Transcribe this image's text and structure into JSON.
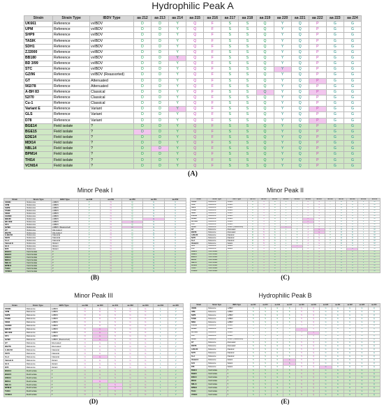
{
  "colors": {
    "field_row": "#cfe8c4",
    "highlight": "#f2c6ee",
    "header": "#d8d8d8"
  },
  "panels": [
    {
      "id": "A",
      "title": "Hydrophilic Peak A",
      "label": "(A)",
      "box": [
        34,
        0,
        484,
        258
      ],
      "title_h": 20,
      "title_fs": 14,
      "label_fs": 10,
      "fs": 5.1,
      "first_w": 0.085,
      "type_w": 0.11,
      "ibdv_w": 0.13,
      "columns": [
        "Strain",
        "Strain Type",
        "IBDV Type",
        "aa 212",
        "aa 213",
        "aa 214",
        "aa 215",
        "aa 216",
        "aa 217",
        "aa 218",
        "aa 219",
        "aa 220",
        "aa 221",
        "aa 222",
        "aa 223",
        "aa 224"
      ],
      "residues": [
        "D",
        "D",
        "Y",
        "Q",
        "F",
        "S",
        "S",
        "Q",
        "Y",
        "Q",
        "P",
        "G",
        "G"
      ],
      "colorkeys": [
        "g",
        "g",
        "g",
        "p",
        "p",
        "g",
        "g",
        "g",
        "t",
        "t",
        "p",
        "t",
        "t"
      ]
    },
    {
      "id": "B",
      "title": "Minor Peak I",
      "label": "(B)",
      "box": [
        5,
        268,
        262,
        138
      ],
      "title_h": 14,
      "title_fs": 9,
      "label_fs": 9,
      "fs": 2.8,
      "first_w": 0.12,
      "type_w": 0.14,
      "ibdv_w": 0.15,
      "columns": [
        "Strain",
        "Strain Type",
        "IBDV Type",
        "aa 248",
        "aa 249",
        "aa 250",
        "aa 251",
        "aa 252"
      ],
      "residues": [
        "T",
        "N",
        "Q",
        "G",
        "V"
      ],
      "colorkeys": [
        "g",
        "p",
        "g",
        "t",
        "t"
      ]
    },
    {
      "id": "C",
      "title": "Minor Peak II",
      "label": "(C)",
      "box": [
        272,
        268,
        273,
        138
      ],
      "title_h": 14,
      "title_fs": 9,
      "label_fs": 9,
      "fs": 2.4,
      "first_w": 0.09,
      "type_w": 0.1,
      "ibdv_w": 0.11,
      "columns": [
        "Strain",
        "Strain Type",
        "IBDV Type",
        "aa 279",
        "aa 280",
        "aa 281",
        "aa 282",
        "aa 283",
        "aa 284",
        "aa 285",
        "aa 286",
        "aa 287",
        "aa 288",
        "aa 289",
        "aa 290"
      ],
      "residues": [
        "D",
        "N",
        "G",
        "L",
        "T",
        "A",
        "G",
        "T",
        "D",
        "N",
        "L",
        "M"
      ],
      "colorkeys": [
        "g",
        "p",
        "g",
        "g",
        "g",
        "p",
        "p",
        "g",
        "t",
        "t",
        "t",
        "t"
      ]
    },
    {
      "id": "D",
      "title": "Minor Peak III",
      "label": "(D)",
      "box": [
        5,
        419,
        258,
        165
      ],
      "title_h": 14,
      "title_fs": 9,
      "label_fs": 9,
      "fs": 2.8,
      "first_w": 0.12,
      "type_w": 0.14,
      "ibdv_w": 0.15,
      "columns": [
        "Strain",
        "Strain Type",
        "IBDV Type",
        "aa 299",
        "aa 300",
        "aa 301",
        "aa 302",
        "aa 303",
        "aa 304",
        "aa 305"
      ],
      "residues": [
        "N",
        "E",
        "S",
        "G",
        "G",
        "L",
        "V"
      ],
      "colorkeys": [
        "p",
        "p",
        "p",
        "p",
        "p",
        "t",
        "t"
      ]
    },
    {
      "id": "E",
      "title": "Hydrophilic Peak B",
      "label": "(E)",
      "box": [
        272,
        419,
        273,
        165
      ],
      "title_h": 14,
      "title_fs": 9,
      "label_fs": 9,
      "fs": 2.4,
      "first_w": 0.09,
      "type_w": 0.1,
      "ibdv_w": 0.11,
      "columns": [
        "Strain",
        "Strain Type",
        "IBDV Type",
        "aa 314",
        "aa 315",
        "aa 316",
        "aa 317",
        "aa 318",
        "aa 319",
        "aa 320",
        "aa 321",
        "aa 322",
        "aa 323",
        "aa 324"
      ],
      "residues": [
        "S",
        "S",
        "G",
        "S",
        "S",
        "Q",
        "G",
        "G",
        "G",
        "G",
        "Q"
      ],
      "colorkeys": [
        "g",
        "g",
        "g",
        "g",
        "p",
        "p",
        "t",
        "t",
        "t",
        "t",
        "t"
      ]
    }
  ],
  "strains": [
    {
      "name": "UK661",
      "type": "Reference",
      "ibdv": "vvIBDV"
    },
    {
      "name": "UPM",
      "type": "Reference",
      "ibdv": "vvIBDV"
    },
    {
      "name": "SHP9",
      "type": "Reference",
      "ibdv": "vvIBDV"
    },
    {
      "name": "TASIK",
      "type": "Reference",
      "ibdv": "vvIBDV"
    },
    {
      "name": "SDH1",
      "type": "Reference",
      "ibdv": "vvIBDV"
    },
    {
      "name": "ZJ2000",
      "type": "Reference",
      "ibdv": "vvIBDV"
    },
    {
      "name": "BB180",
      "type": "Reference",
      "ibdv": "vvIBDV"
    },
    {
      "name": "BD 3/99",
      "type": "Reference",
      "ibdv": "vvIBDV"
    },
    {
      "name": "STC",
      "type": "Reference",
      "ibdv": "vvIBDV"
    },
    {
      "name": "GZ/96",
      "type": "Reference",
      "ibdv": "vvIBDV (Reassorted)"
    },
    {
      "name": "GT",
      "type": "Reference",
      "ibdv": "Attenuated"
    },
    {
      "name": "902/78",
      "type": "Reference",
      "ibdv": "Attenuated"
    },
    {
      "name": "A-BH 83",
      "type": "Reference",
      "ibdv": "Classical"
    },
    {
      "name": "52/70",
      "type": "Reference",
      "ibdv": "Classical"
    },
    {
      "name": "Cu-1",
      "type": "Reference",
      "ibdv": "Classical"
    },
    {
      "name": "Variant E",
      "type": "Reference",
      "ibdv": "Variant"
    },
    {
      "name": "GLS",
      "type": "Reference",
      "ibdv": "Variant"
    },
    {
      "name": "D78",
      "type": "Reference",
      "ibdv": "Variant"
    },
    {
      "name": "BGE14",
      "type": "Field isolate",
      "ibdv": "?"
    },
    {
      "name": "BGE15",
      "type": "Field isolate",
      "ibdv": "?"
    },
    {
      "name": "EDE14",
      "type": "Field isolate",
      "ibdv": "?"
    },
    {
      "name": "MDI14",
      "type": "Field isolate",
      "ibdv": "?"
    },
    {
      "name": "NBL14",
      "type": "Field isolate",
      "ibdv": "?"
    },
    {
      "name": "BPM14",
      "type": "Field isolate",
      "ibdv": "?"
    },
    {
      "name": "THI14",
      "type": "Field isolate",
      "ibdv": "?"
    },
    {
      "name": "VCNI14",
      "type": "Field isolate",
      "ibdv": "?"
    }
  ]
}
